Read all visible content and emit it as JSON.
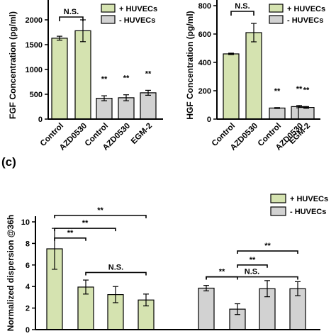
{
  "colors": {
    "with_huvecs": "#d5e3b0",
    "without_huvecs": "#d2d2d2"
  },
  "legend": {
    "with_label": "+ HUVECs",
    "without_label": "- HUVECs"
  },
  "panel_c_label": "(c)",
  "chart_data": [
    {
      "type": "bar",
      "ylabel": "FGF Concentration (pg/ml)",
      "ylim": [
        0,
        2400
      ],
      "yticks": [
        "0",
        "500",
        "1000",
        "1500",
        "2000"
      ],
      "yticks_values": [
        0,
        500,
        1000,
        1500,
        2000
      ],
      "categories": [
        "Control",
        "AZD0530",
        "Control",
        "AZD0530",
        "EGM-2"
      ],
      "values": [
        1630,
        1780,
        420,
        430,
        530
      ],
      "errors": [
        40,
        220,
        50,
        60,
        50
      ],
      "groups": [
        "+",
        "+",
        "-",
        "-",
        "-"
      ],
      "significance": [
        "",
        "",
        "**",
        "**",
        "**"
      ],
      "bracket_label": "N.S."
    },
    {
      "type": "bar",
      "ylabel": "HGF Concentration (pg/ml)",
      "ylim": [
        0,
        820
      ],
      "yticks": [
        "0",
        "200",
        "400",
        "600",
        "800"
      ],
      "yticks_values": [
        0,
        200,
        400,
        600,
        800
      ],
      "categories": [
        "Control",
        "AZD0530",
        "Control",
        "AZD0530",
        "EGM-2"
      ],
      "values": [
        460,
        610,
        78,
        88,
        82
      ],
      "errors": [
        5,
        65,
        3,
        8,
        6
      ],
      "groups": [
        "+",
        "+",
        "-",
        "-",
        "-"
      ],
      "significance": [
        "",
        "",
        "**",
        "**",
        "**"
      ],
      "bracket_label": "N.S."
    },
    {
      "type": "bar",
      "ylabel": "Normalized dispersion @36h",
      "ylim": [
        0,
        10
      ],
      "yticks": [
        "0",
        "2",
        "4",
        "6",
        "8",
        "10"
      ],
      "yticks_values": [
        0,
        2,
        4,
        6,
        8,
        10
      ],
      "values": [
        7.5,
        3.95,
        3.25,
        2.75,
        3.85,
        1.9,
        3.8,
        3.8
      ],
      "errors": [
        1.9,
        0.65,
        0.75,
        0.55,
        0.25,
        0.5,
        0.75,
        0.65
      ],
      "groups": [
        "+",
        "+",
        "+",
        "+",
        "-",
        "-",
        "-",
        "-"
      ],
      "sig_brackets": [
        {
          "from": 0,
          "to": 1,
          "label": "**",
          "y": 8.5
        },
        {
          "from": 0,
          "to": 2,
          "label": "**",
          "y": 9.4
        },
        {
          "from": 0,
          "to": 3,
          "label": "**",
          "y": 10.6
        },
        {
          "from": 1,
          "to": 3,
          "label": "N.S.",
          "y": 5.3
        },
        {
          "from": 4,
          "to": 5,
          "label": "**",
          "y": 4.9
        },
        {
          "from": 5,
          "to": 6,
          "label": "**",
          "y": 6.0
        },
        {
          "from": 5,
          "to": 7,
          "label": "**",
          "y": 7.3
        },
        {
          "from": 4,
          "to": 7,
          "label": "N.S.",
          "y": 4.9
        }
      ]
    }
  ]
}
